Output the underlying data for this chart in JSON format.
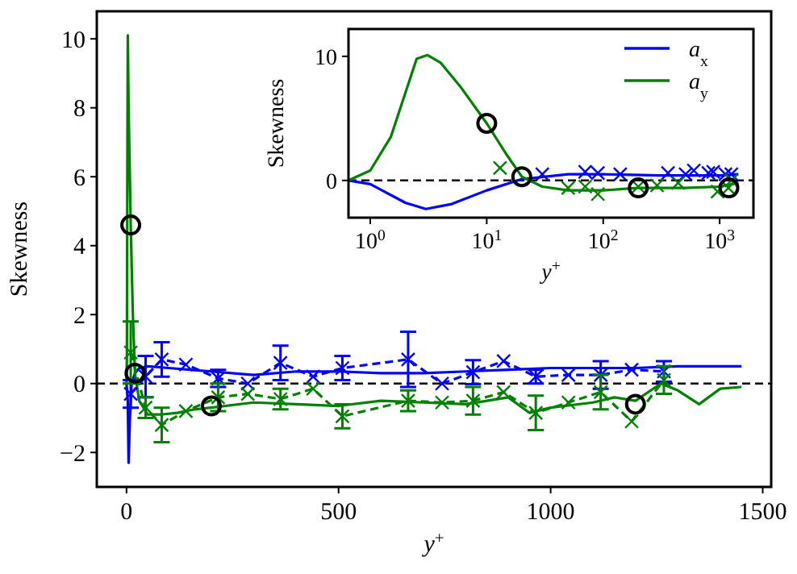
{
  "chart_data": [
    {
      "type": "line",
      "xlabel": "y$^{+}$",
      "ylabel": "Skewness",
      "xlim": [
        -70,
        1520
      ],
      "ylim": [
        -3,
        10.8
      ],
      "xticks": [
        0,
        500,
        1000,
        1500
      ],
      "yticks": [
        -2,
        0,
        2,
        4,
        6,
        8,
        10
      ],
      "ref_lines": [
        {
          "axis": "y",
          "value": 0,
          "color": "#000000",
          "line_style": "dashed"
        }
      ],
      "series": [
        {
          "type": "line",
          "color": "#0000ff",
          "line_style": "solid",
          "x": [
            0,
            3,
            5,
            8,
            12,
            20,
            30,
            50,
            100,
            200,
            300,
            400,
            500,
            600,
            700,
            800,
            900,
            1000,
            1100,
            1200,
            1300,
            1450
          ],
          "values": [
            0,
            -0.5,
            -2.3,
            -1,
            0,
            0.3,
            0.45,
            0.5,
            0.45,
            0.35,
            0.25,
            0.35,
            0.35,
            0.3,
            0.3,
            0.35,
            0.4,
            0.45,
            0.45,
            0.45,
            0.5,
            0.5
          ]
        },
        {
          "type": "line",
          "color": "#008000",
          "line_style": "solid",
          "x": [
            0,
            1,
            2,
            3.1,
            5,
            10,
            15,
            20,
            30,
            50,
            80,
            120,
            160,
            200,
            300,
            400,
            500,
            600,
            700,
            800,
            900,
            950,
            1000,
            1100,
            1150,
            1200,
            1260,
            1300,
            1350,
            1400,
            1450
          ],
          "values": [
            0,
            0.8,
            6,
            10.1,
            8,
            4.6,
            2,
            0.3,
            -0.5,
            -0.9,
            -0.9,
            -0.85,
            -0.75,
            -0.7,
            -0.55,
            -0.6,
            -0.65,
            -0.5,
            -0.55,
            -0.6,
            -0.4,
            -0.85,
            -0.7,
            -0.55,
            -0.4,
            -0.5,
            0,
            -0.2,
            -0.6,
            -0.15,
            -0.1
          ]
        },
        {
          "type": "line",
          "color": "#0000ff",
          "line_style": "dashed",
          "marker": "cross",
          "x": [
            10,
            45,
            83,
            140,
            216,
            286,
            363,
            440,
            509,
            664,
            744,
            817,
            889,
            965,
            1042,
            1118,
            1191,
            1267
          ],
          "values": [
            -0.3,
            0.2,
            0.7,
            0.55,
            0.15,
            0,
            0.6,
            0.2,
            0.45,
            0.7,
            0,
            0.33,
            0.65,
            0.2,
            0.25,
            0.25,
            0.4,
            0.35
          ],
          "errors": [
            0.4,
            0.6,
            0.5,
            null,
            0.25,
            null,
            0.5,
            null,
            0.35,
            0.8,
            null,
            0.35,
            null,
            0.2,
            null,
            0.4,
            null,
            0.3
          ]
        },
        {
          "type": "line",
          "color": "#008000",
          "line_style": "dashed",
          "marker": "cross",
          "x": [
            10,
            45,
            83,
            140,
            216,
            286,
            363,
            440,
            509,
            664,
            744,
            817,
            889,
            965,
            1042,
            1118,
            1191,
            1267
          ],
          "values": [
            0.9,
            -0.7,
            -1.2,
            -0.8,
            -0.4,
            -0.3,
            -0.45,
            -0.15,
            -0.95,
            -0.5,
            -0.55,
            -0.5,
            -0.25,
            -0.85,
            -0.55,
            -0.25,
            -1.1,
            0.1
          ],
          "errors": [
            0.9,
            0.3,
            0.5,
            null,
            0.4,
            null,
            0.3,
            null,
            0.35,
            0.3,
            null,
            0.4,
            null,
            0.5,
            null,
            0.5,
            null,
            0.4
          ]
        },
        {
          "type": "scatter",
          "color": "#000000",
          "marker": "circle",
          "x": [
            10,
            20,
            200,
            1200
          ],
          "values": [
            4.6,
            0.3,
            -0.65,
            -0.6
          ]
        }
      ]
    },
    {
      "type": "line",
      "xlabel": "y$^{+}$",
      "ylabel": "Skewness",
      "log": "x",
      "xlim": [
        0.65,
        1950
      ],
      "ylim": [
        -3,
        12.2
      ],
      "xticks": [
        {
          "value": 1,
          "label": "10$^{0}$"
        },
        {
          "value": 10,
          "label": "10$^{1}$"
        },
        {
          "value": 100,
          "label": "10$^{2}$"
        },
        {
          "value": 1000,
          "label": "10$^{3}$"
        }
      ],
      "yticks": [
        0,
        10
      ],
      "legend": "top right",
      "ref_lines": [
        {
          "axis": "y",
          "value": 0,
          "color": "#000000",
          "line_style": "dashed"
        }
      ],
      "series": [
        {
          "type": "line",
          "name": "a$_{x}$",
          "color": "#0000ff",
          "line_style": "solid",
          "x": [
            0.65,
            1,
            2,
            3,
            5,
            10,
            20,
            50,
            100,
            300,
            1000,
            1450
          ],
          "values": [
            0,
            -0.3,
            -1.8,
            -2.3,
            -1.9,
            -0.8,
            0.1,
            0.5,
            0.5,
            0.4,
            0.4,
            0.5
          ]
        },
        {
          "type": "line",
          "name": "a$_{y}$",
          "color": "#008000",
          "line_style": "solid",
          "x": [
            0.65,
            1,
            1.5,
            2.5,
            3.1,
            4,
            6,
            10,
            15,
            20,
            30,
            50,
            100,
            200,
            500,
            1000,
            1450
          ],
          "values": [
            0,
            0.8,
            3.5,
            9.8,
            10.1,
            9.5,
            7.5,
            4.6,
            2,
            0.3,
            -0.5,
            -0.8,
            -0.8,
            -0.6,
            -0.6,
            -0.5,
            -0.2
          ]
        },
        {
          "type": "scatter",
          "color": "#0000ff",
          "marker": "cross",
          "x": [
            30,
            70,
            90,
            140,
            360,
            510,
            600,
            800,
            880,
            1120,
            1260
          ],
          "values": [
            0.5,
            0.7,
            0.6,
            0.5,
            0.6,
            0.5,
            0.8,
            0.6,
            0.7,
            0.5,
            0.5
          ]
        },
        {
          "type": "scatter",
          "color": "#008000",
          "marker": "cross",
          "x": [
            13,
            50,
            70,
            90,
            200,
            290,
            440,
            960,
            1190,
            1260
          ],
          "values": [
            1,
            -0.6,
            -0.5,
            -1.1,
            -0.5,
            -0.4,
            -0.2,
            -0.9,
            -0.6,
            0
          ]
        },
        {
          "type": "scatter",
          "color": "#000000",
          "marker": "circle",
          "x": [
            10,
            20,
            200,
            1200
          ],
          "values": [
            4.6,
            0.3,
            -0.6,
            -0.6
          ]
        }
      ]
    }
  ]
}
